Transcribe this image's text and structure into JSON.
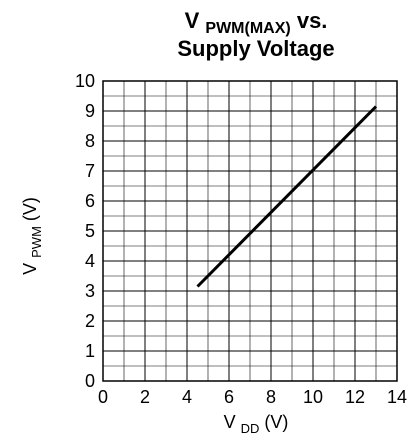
{
  "chart_data": {
    "type": "line",
    "title": {
      "main": "V",
      "main_sub": "PWM(MAX)",
      "main_suffix": " vs.",
      "line2": "Supply Voltage"
    },
    "xlabel": {
      "main": "V",
      "sub": "DD",
      "suffix": " (V)"
    },
    "ylabel": {
      "main": "V",
      "sub": "PWM",
      "suffix": " (V)"
    },
    "xlim": [
      0,
      14
    ],
    "ylim": [
      0,
      10
    ],
    "xticks": [
      "0",
      "2",
      "4",
      "6",
      "8",
      "10",
      "12",
      "14"
    ],
    "yticks": [
      "0",
      "1",
      "2",
      "3",
      "4",
      "5",
      "6",
      "7",
      "8",
      "9",
      "10"
    ],
    "grid": true,
    "minor_grid": {
      "x_step": 1,
      "y_step": 0.5
    },
    "series": [
      {
        "x": [
          4.5,
          13.0
        ],
        "y": [
          3.15,
          9.15
        ]
      }
    ],
    "colors": {
      "line": "#000000",
      "grid": "#000000",
      "background": "#ffffff"
    }
  }
}
